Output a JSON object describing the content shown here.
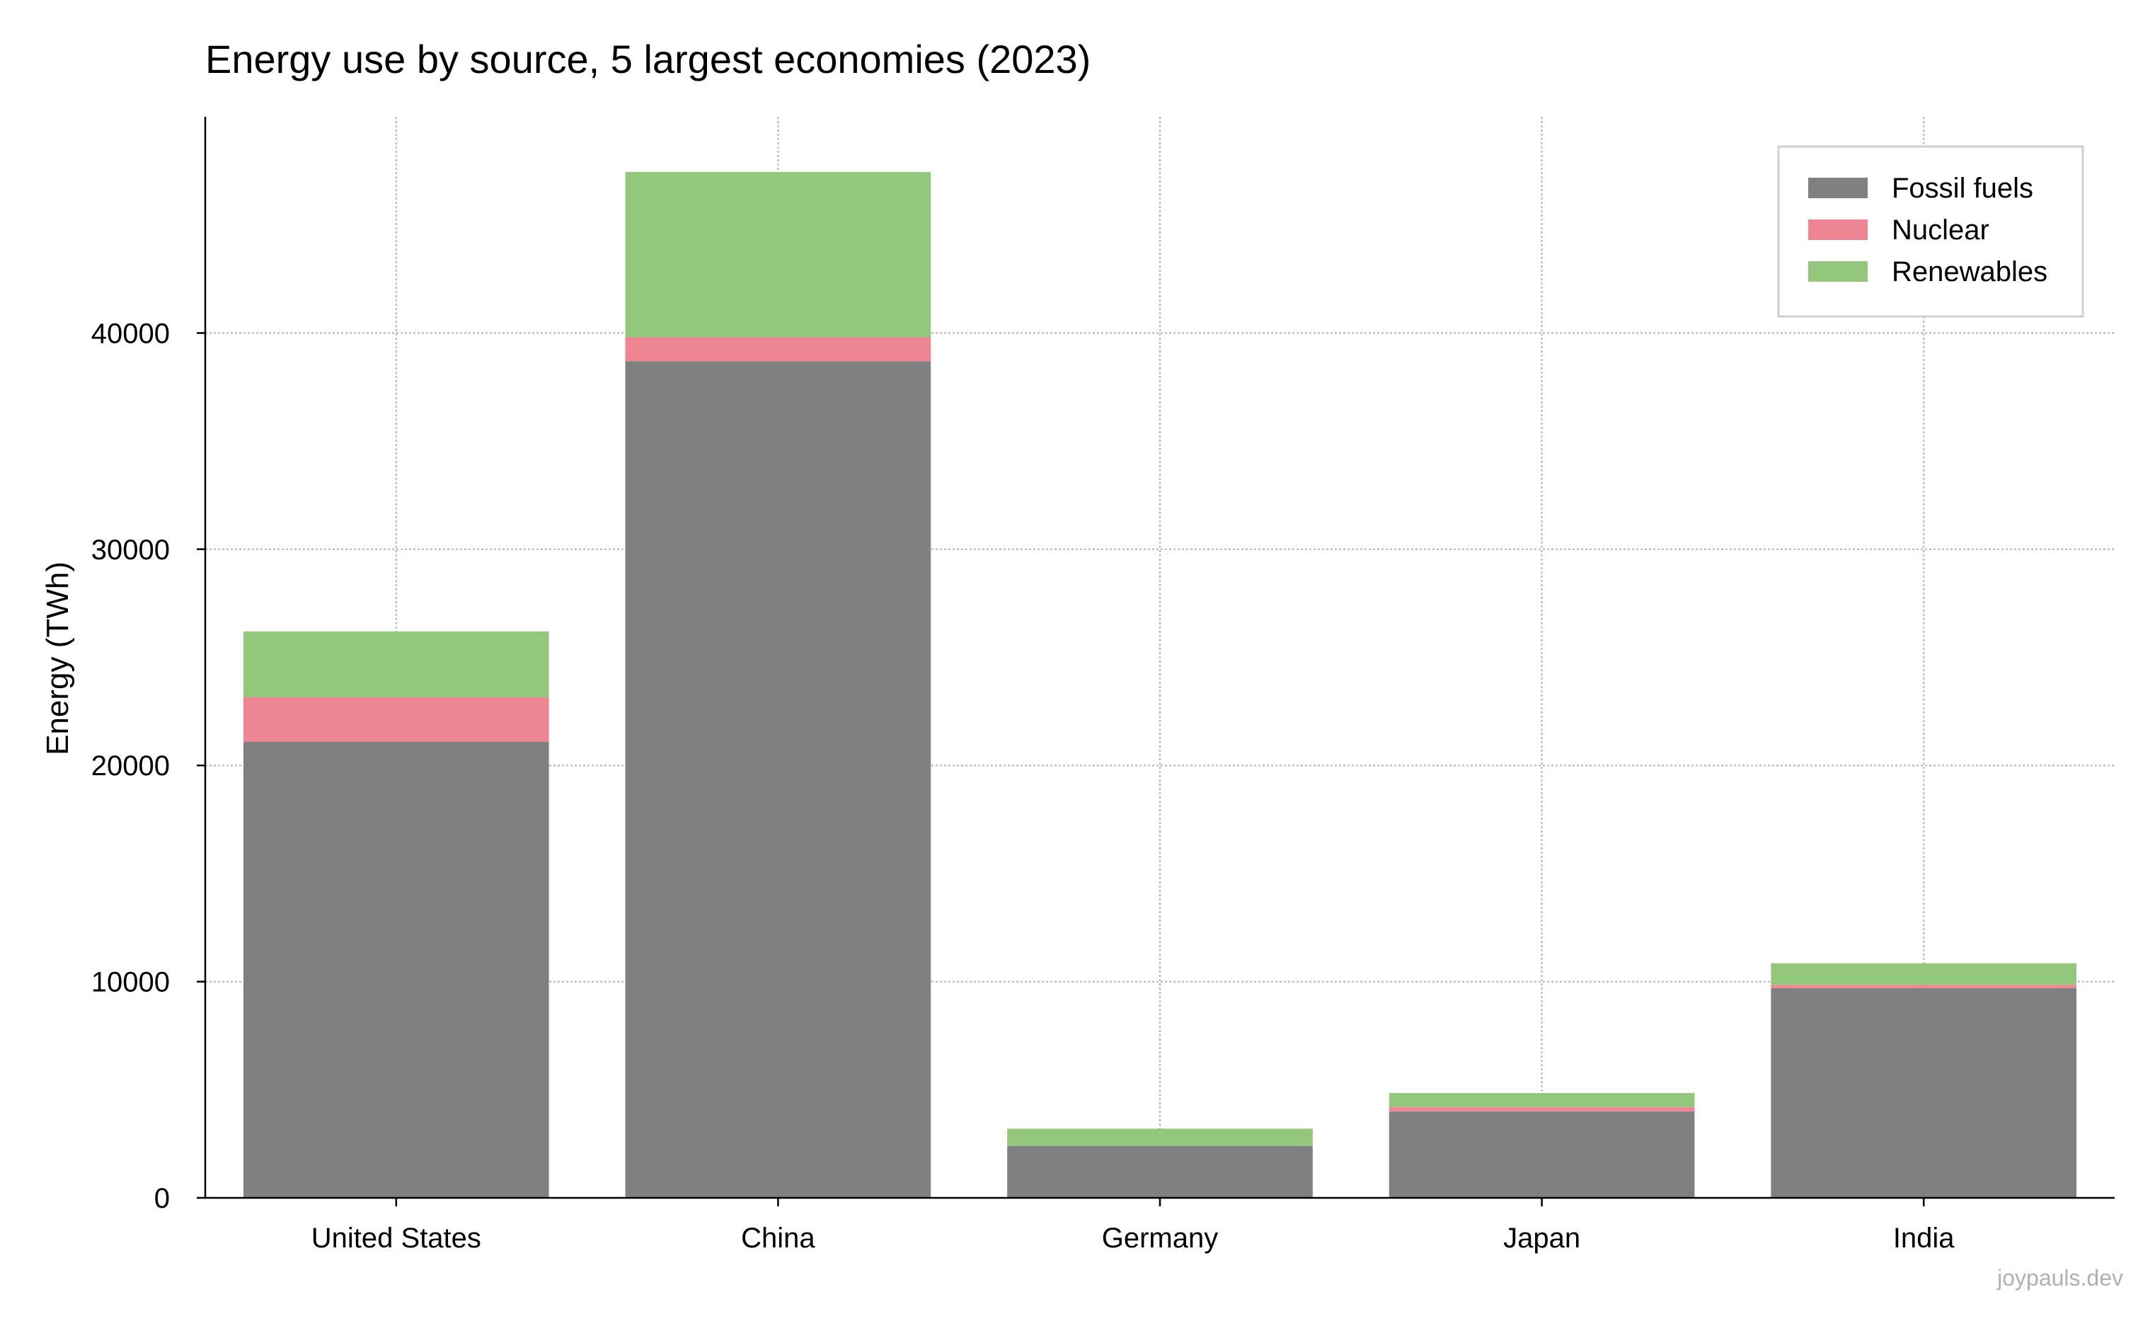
{
  "chart_data": {
    "type": "bar",
    "stacked": true,
    "title": "Energy use by source, 5 largest economies (2023)",
    "xlabel": "",
    "ylabel": "Energy (TWh)",
    "categories": [
      "United States",
      "China",
      "Germany",
      "Japan",
      "India"
    ],
    "series": [
      {
        "name": "Fossil fuels",
        "color": "#808080",
        "values": [
          21100,
          38700,
          2400,
          4000,
          9700
        ]
      },
      {
        "name": "Nuclear",
        "color": "#ee8593",
        "values": [
          2050,
          1100,
          0,
          200,
          150
        ]
      },
      {
        "name": "Renewables",
        "color": "#93c87c",
        "values": [
          3050,
          7650,
          800,
          650,
          1000
        ]
      }
    ],
    "ylim": [
      0,
      50000
    ],
    "yticks": [
      0,
      10000,
      20000,
      30000,
      40000
    ],
    "ytick_labels": [
      "0",
      "10000",
      "20000",
      "30000",
      "40000"
    ],
    "grid": true,
    "legend_position": "top-right"
  },
  "watermark": "joypauls.dev"
}
